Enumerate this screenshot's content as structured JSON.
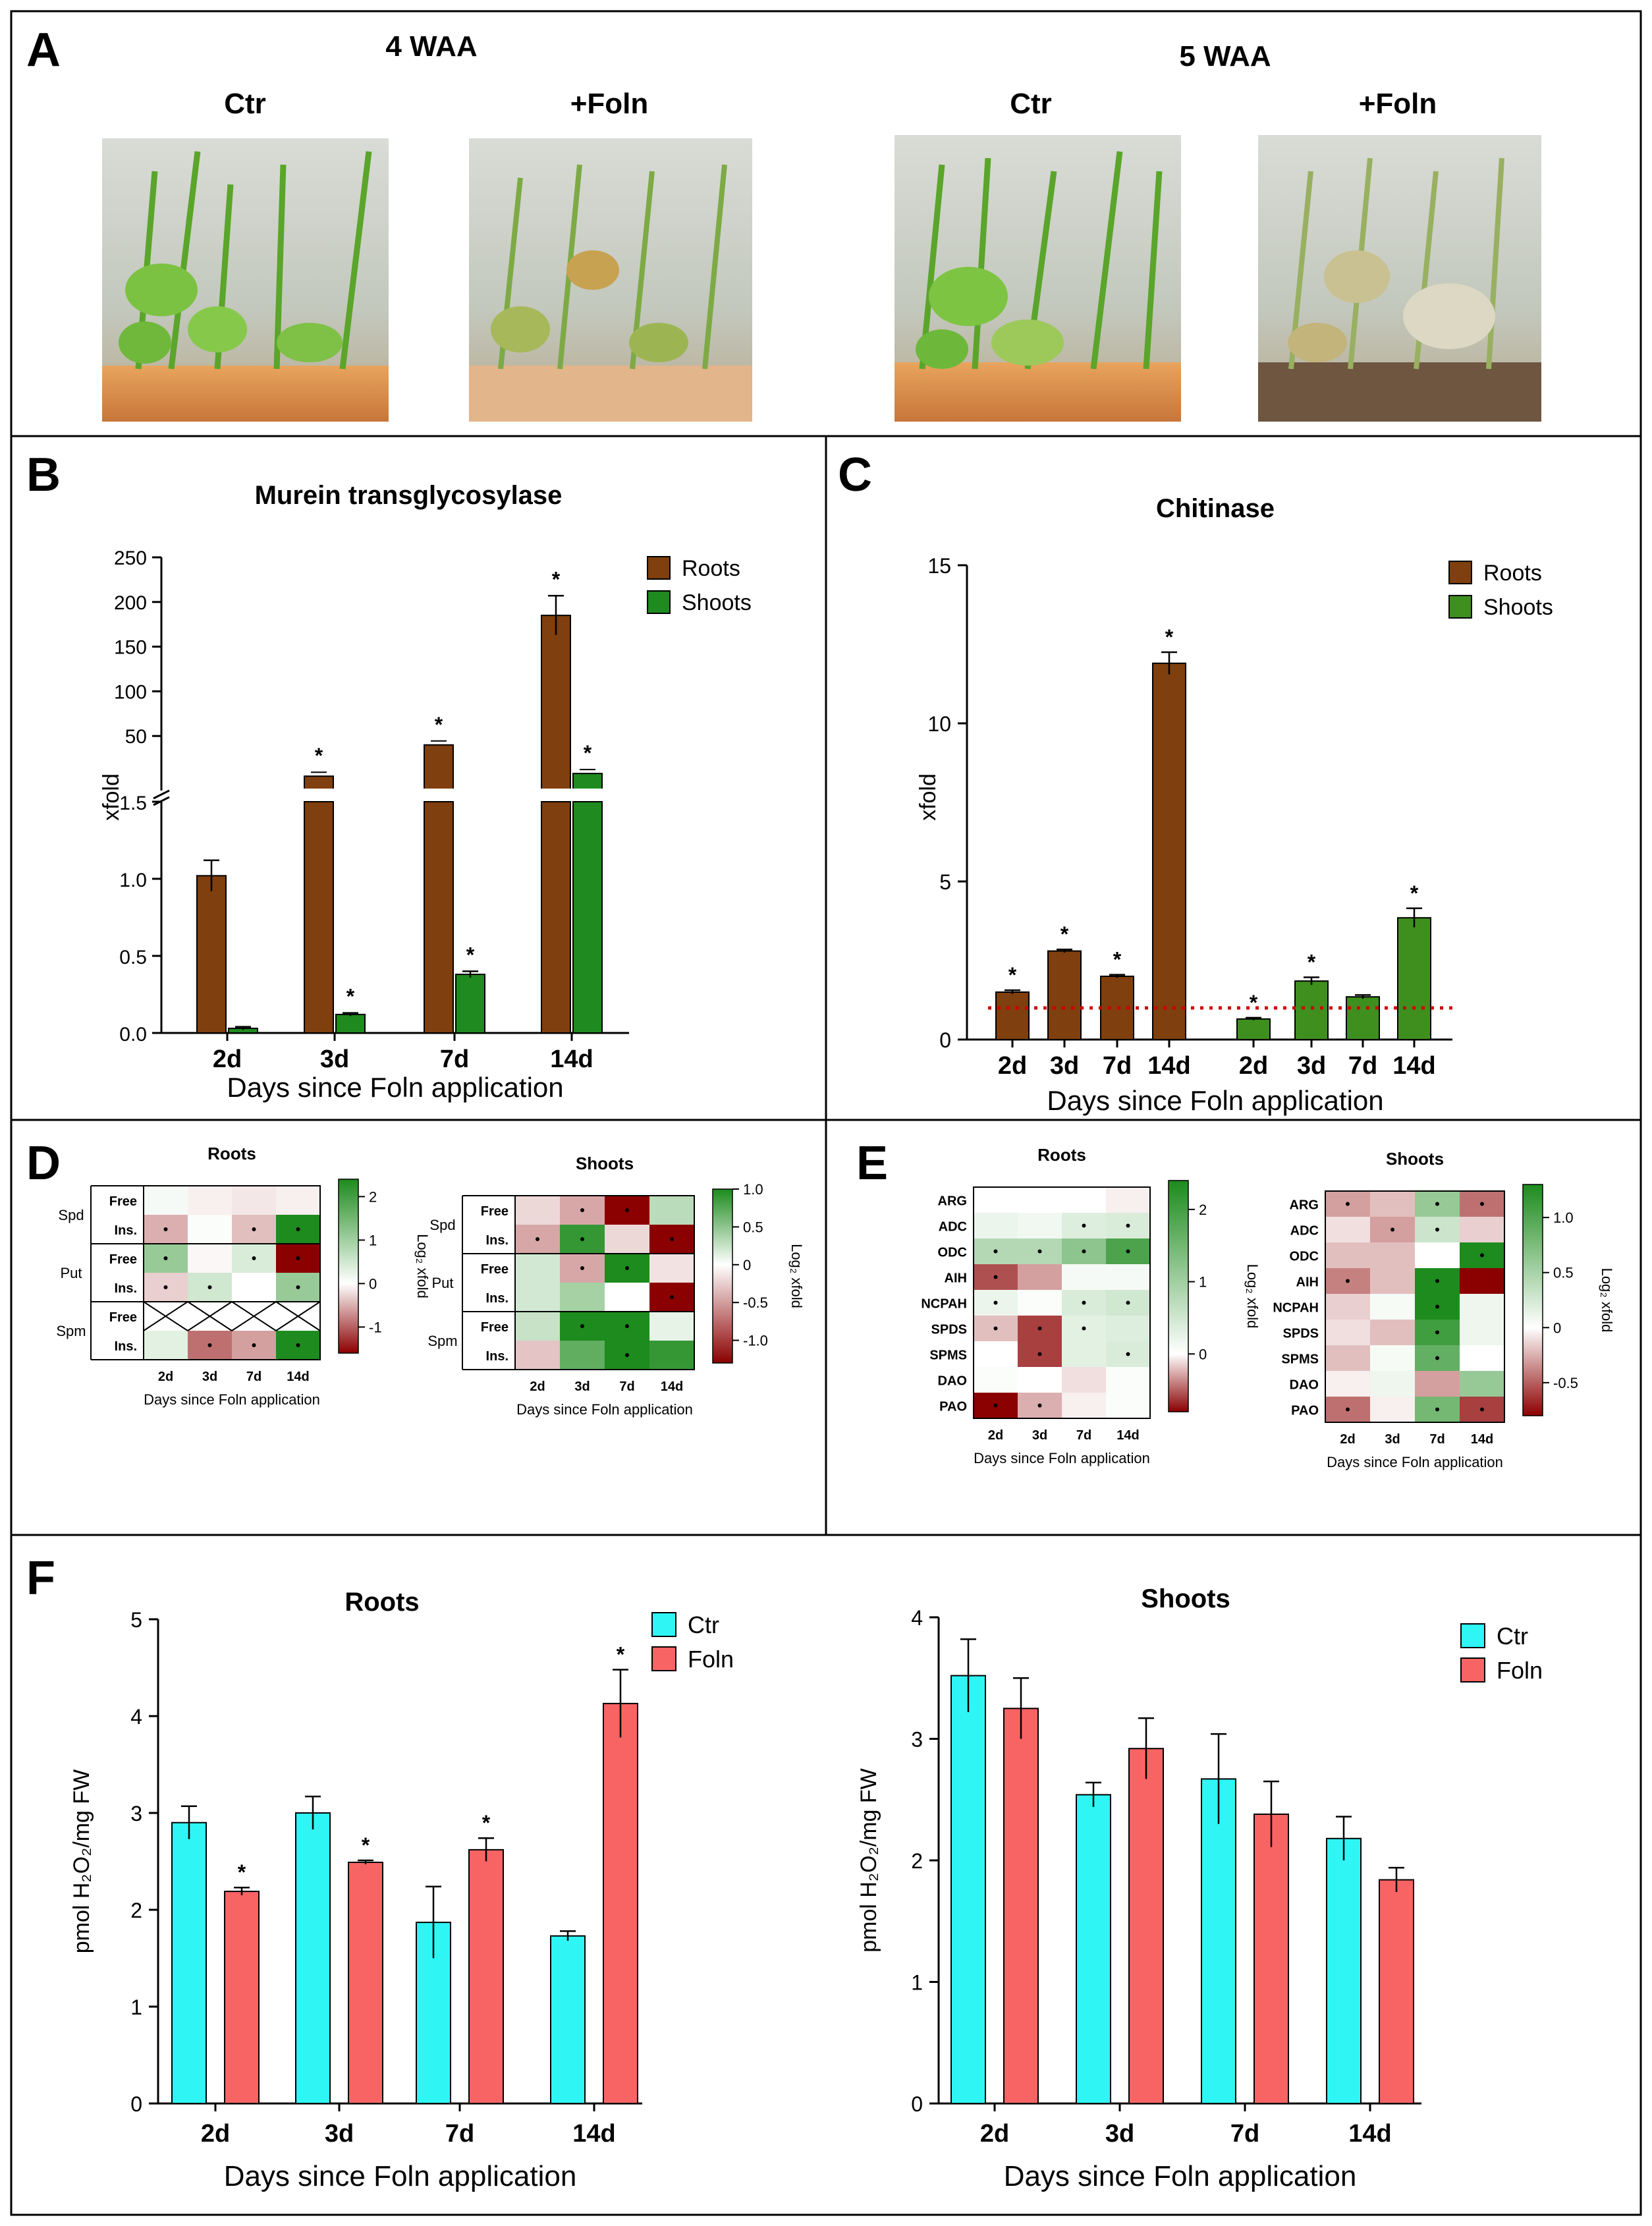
{
  "panel_labels": {
    "A": "A",
    "B": "B",
    "C": "C",
    "D": "D",
    "E": "E",
    "F": "F"
  },
  "panelA": {
    "groups": [
      {
        "title": "4 WAA",
        "labels": [
          "Ctr",
          "+Foln"
        ]
      },
      {
        "title": "5 WAA",
        "labels": [
          "Ctr",
          "+Foln"
        ]
      }
    ]
  },
  "colors": {
    "roots_brown": "#7f3f0e",
    "shoots_green": "#1f8a1f",
    "shoots_green_c": "#3f8f1f",
    "ctr_cyan": "#2ff5f5",
    "foln_red": "#f86464",
    "ref_line": "#d00000",
    "heat_green": "#1d8b1d",
    "heat_red": "#8b0000"
  },
  "chart_data": [
    {
      "id": "B",
      "type": "bar",
      "title": "Murein transglycosylase",
      "xlabel": "Days since Foln application",
      "ylabel": "xfold",
      "categories": [
        "2d",
        "3d",
        "7d",
        "14d"
      ],
      "broken_axis": {
        "lower_range": [
          0,
          1.5
        ],
        "upper_range": [
          0,
          250
        ],
        "lower_ticks": [
          "0.0",
          "0.5",
          "1.0",
          "1.5"
        ],
        "upper_ticks": [
          "50",
          "100",
          "150",
          "200",
          "250"
        ]
      },
      "series": [
        {
          "name": "Roots",
          "values": [
            1.02,
            5,
            40,
            185
          ],
          "errors": [
            0.1,
            null,
            null,
            22
          ],
          "sig": [
            false,
            true,
            true,
            true
          ]
        },
        {
          "name": "Shoots",
          "values": [
            0.03,
            0.12,
            0.38,
            8
          ],
          "errors": [
            0.01,
            0.01,
            0.02,
            null
          ],
          "sig": [
            false,
            true,
            true,
            true
          ]
        }
      ],
      "legend": [
        "Roots",
        "Shoots"
      ],
      "sig_mark": "*"
    },
    {
      "id": "C",
      "type": "bar",
      "title": "Chitinase",
      "xlabel": "Days since Foln application",
      "ylabel": "xfold",
      "ylim": [
        0,
        15
      ],
      "yticks": [
        "0",
        "5",
        "10",
        "15"
      ],
      "group_labels": [
        "2d",
        "3d",
        "7d",
        "14d",
        "2d",
        "3d",
        "7d",
        "14d"
      ],
      "series": [
        {
          "name": "Roots",
          "values": [
            1.5,
            2.8,
            2.0,
            11.9
          ],
          "errors": [
            0.06,
            0.05,
            0.05,
            0.35
          ],
          "sig": [
            true,
            true,
            true,
            true
          ]
        },
        {
          "name": "Shoots",
          "values": [
            0.65,
            1.85,
            1.35,
            3.85
          ],
          "errors": [
            0.04,
            0.12,
            0.06,
            0.3
          ],
          "sig": [
            true,
            true,
            false,
            true
          ]
        }
      ],
      "reference_line": 1,
      "legend": [
        "Roots",
        "Shoots"
      ],
      "sig_mark": "*"
    },
    {
      "id": "D",
      "type": "heatmap",
      "colorbar_label": "Log₂ xfold",
      "xlabel": "Days since Foln application",
      "columns": [
        "2d",
        "3d",
        "7d",
        "14d"
      ],
      "row_labels": [
        "Free",
        "Ins.",
        "Free",
        "Ins.",
        "Free",
        "Ins."
      ],
      "group_labels": [
        "Spd",
        "Put",
        "Spm"
      ],
      "maps": [
        {
          "title": "Roots",
          "vmin": -1.6,
          "vmax": 2.4,
          "cbar_ticks": [
            "2",
            "1",
            "0",
            "-1"
          ],
          "values": [
            [
              0.1,
              -0.1,
              -0.15,
              -0.1
            ],
            [
              -0.5,
              0.05,
              -0.4,
              2.4
            ],
            [
              1.1,
              -0.05,
              0.4,
              -1.8
            ],
            [
              -0.3,
              0.5,
              0.0,
              1.1
            ],
            [
              null,
              null,
              null,
              null
            ],
            [
              0.3,
              -0.9,
              -0.6,
              2.4
            ]
          ],
          "sig": [
            [
              0,
              0,
              0,
              0
            ],
            [
              1,
              0,
              1,
              1
            ],
            [
              1,
              0,
              1,
              1
            ],
            [
              1,
              1,
              0,
              1
            ],
            [
              0,
              0,
              0,
              0
            ],
            [
              0,
              1,
              1,
              1
            ]
          ]
        },
        {
          "title": "Shoots",
          "vmin": -1.3,
          "vmax": 1.0,
          "cbar_ticks": [
            "1.0",
            "0.5",
            "0",
            "-0.5",
            "-1.0"
          ],
          "values": [
            [
              -0.2,
              -0.45,
              -1.3,
              0.3
            ],
            [
              -0.45,
              0.9,
              -0.2,
              -1.3
            ],
            [
              0.2,
              -0.45,
              1.0,
              -0.15
            ],
            [
              0.2,
              0.4,
              0.0,
              -1.3
            ],
            [
              0.25,
              1.0,
              1.0,
              0.1
            ],
            [
              -0.3,
              0.7,
              1.0,
              0.9
            ]
          ],
          "sig": [
            [
              0,
              1,
              1,
              0
            ],
            [
              1,
              1,
              0,
              1
            ],
            [
              0,
              1,
              1,
              0
            ],
            [
              0,
              0,
              0,
              1
            ],
            [
              0,
              1,
              1,
              0
            ],
            [
              0,
              0,
              1,
              0
            ]
          ]
        }
      ]
    },
    {
      "id": "E",
      "type": "heatmap",
      "colorbar_label": "Log₂ xfold",
      "xlabel": "Days since Foln application",
      "columns": [
        "2d",
        "3d",
        "7d",
        "14d"
      ],
      "row_labels": [
        "ARG",
        "ADC",
        "ODC",
        "AIH",
        "NCPAH",
        "SPDS",
        "SPMS",
        "DAO",
        "PAO"
      ],
      "maps": [
        {
          "title": "Roots",
          "vmin": -0.8,
          "vmax": 2.4,
          "cbar_ticks": [
            "2",
            "1",
            "0"
          ],
          "values": [
            [
              0.0,
              0.0,
              0.0,
              -0.05
            ],
            [
              0.2,
              0.15,
              0.35,
              0.4
            ],
            [
              0.8,
              0.8,
              1.2,
              1.9
            ],
            [
              -0.55,
              -0.3,
              0.1,
              0.1
            ],
            [
              0.2,
              0.05,
              0.4,
              0.5
            ],
            [
              -0.2,
              -0.6,
              0.3,
              0.35
            ],
            [
              0.0,
              -0.6,
              0.3,
              0.4
            ],
            [
              0.05,
              0.0,
              -0.1,
              0.05
            ],
            [
              -0.8,
              -0.25,
              -0.05,
              0.05
            ]
          ],
          "sig": [
            [
              0,
              0,
              0,
              0
            ],
            [
              0,
              0,
              1,
              1
            ],
            [
              1,
              1,
              1,
              1
            ],
            [
              1,
              0,
              0,
              0
            ],
            [
              1,
              0,
              1,
              1
            ],
            [
              1,
              1,
              1,
              0
            ],
            [
              0,
              1,
              0,
              1
            ],
            [
              0,
              0,
              0,
              0
            ],
            [
              1,
              1,
              0,
              0
            ]
          ]
        },
        {
          "title": "Shoots",
          "vmin": -0.8,
          "vmax": 1.3,
          "cbar_ticks": [
            "1.0",
            "0.5",
            "0",
            "-0.5"
          ],
          "values": [
            [
              -0.3,
              -0.2,
              0.6,
              -0.45
            ],
            [
              -0.1,
              -0.3,
              0.3,
              -0.15
            ],
            [
              -0.2,
              -0.2,
              0.0,
              1.3
            ],
            [
              -0.4,
              -0.2,
              1.3,
              -0.8
            ],
            [
              -0.15,
              0.05,
              1.3,
              0.1
            ],
            [
              -0.1,
              -0.2,
              1.1,
              0.1
            ],
            [
              -0.2,
              0.05,
              0.9,
              0.0
            ],
            [
              -0.05,
              0.1,
              -0.3,
              0.6
            ],
            [
              -0.45,
              -0.05,
              0.8,
              -0.6
            ]
          ],
          "sig": [
            [
              1,
              0,
              1,
              1
            ],
            [
              0,
              1,
              1,
              0
            ],
            [
              0,
              0,
              0,
              1
            ],
            [
              1,
              0,
              1,
              0
            ],
            [
              0,
              0,
              1,
              0
            ],
            [
              0,
              0,
              1,
              0
            ],
            [
              0,
              0,
              1,
              0
            ],
            [
              0,
              0,
              0,
              0
            ],
            [
              1,
              0,
              1,
              1
            ]
          ]
        }
      ]
    },
    {
      "id": "F-roots",
      "type": "bar",
      "title": "Roots",
      "xlabel": "Days since Foln application",
      "ylabel": "pmol H₂O₂/mg FW",
      "categories": [
        "2d",
        "3d",
        "7d",
        "14d"
      ],
      "ylim": [
        0,
        5
      ],
      "yticks": [
        "0",
        "1",
        "2",
        "3",
        "4",
        "5"
      ],
      "series": [
        {
          "name": "Ctr",
          "values": [
            2.9,
            3.0,
            1.87,
            1.73
          ],
          "errors": [
            0.17,
            0.17,
            0.37,
            0.05
          ],
          "sig": [
            false,
            false,
            false,
            false
          ]
        },
        {
          "name": "Foln",
          "values": [
            2.19,
            2.49,
            2.62,
            4.13
          ],
          "errors": [
            0.04,
            0.02,
            0.12,
            0.35
          ],
          "sig": [
            true,
            true,
            true,
            true
          ]
        }
      ],
      "legend": [
        "Ctr",
        "Foln"
      ],
      "sig_mark": "*"
    },
    {
      "id": "F-shoots",
      "type": "bar",
      "title": "Shoots",
      "xlabel": "Days since Foln application",
      "ylabel": "pmol H₂O₂/mg FW",
      "categories": [
        "2d",
        "3d",
        "7d",
        "14d"
      ],
      "ylim": [
        0,
        4
      ],
      "yticks": [
        "0",
        "1",
        "2",
        "3",
        "4"
      ],
      "series": [
        {
          "name": "Ctr",
          "values": [
            3.52,
            2.54,
            2.67,
            2.18
          ],
          "errors": [
            0.3,
            0.1,
            0.37,
            0.18
          ],
          "sig": [
            false,
            false,
            false,
            false
          ]
        },
        {
          "name": "Foln",
          "values": [
            3.25,
            2.92,
            2.38,
            1.84
          ],
          "errors": [
            0.25,
            0.25,
            0.27,
            0.1
          ],
          "sig": [
            false,
            false,
            false,
            false
          ]
        }
      ],
      "legend": [
        "Ctr",
        "Foln"
      ],
      "sig_mark": "*"
    }
  ]
}
